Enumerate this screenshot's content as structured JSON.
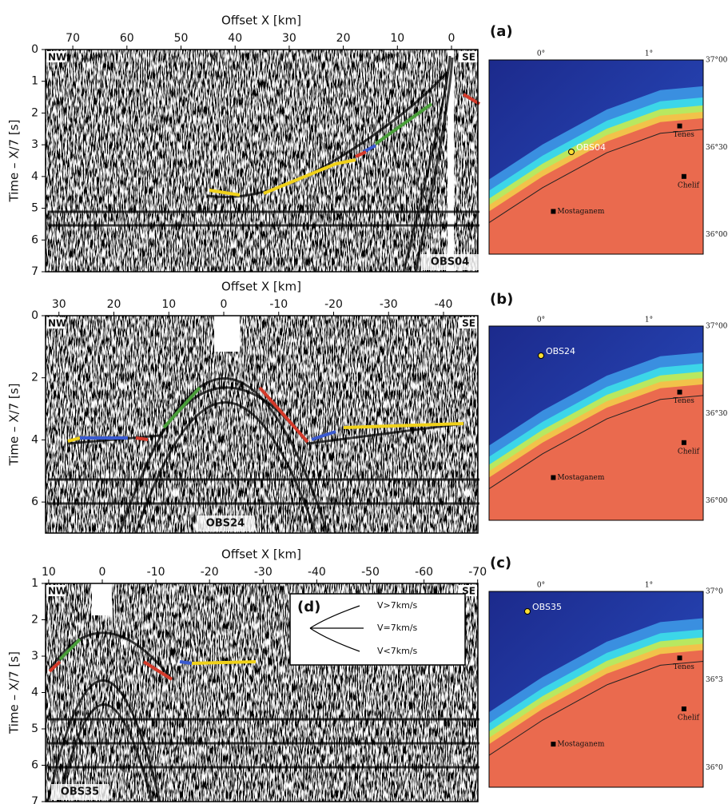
{
  "panels": [
    {
      "label": "(a)",
      "x_axis_label": "Offset X [km]",
      "y_axis_label": "Time – X/7 [s]",
      "x_ticks": [
        70,
        60,
        50,
        40,
        30,
        20,
        10,
        0
      ],
      "y_ticks": [
        0,
        1,
        2,
        3,
        4,
        5,
        6,
        7
      ],
      "left_tag": "NW",
      "right_tag": "SE",
      "station": "OBS04",
      "map": {
        "lon_labels": [
          "0°",
          "1°"
        ],
        "lat_labels": [
          "37°00",
          "36°30",
          "36°00"
        ],
        "places": [
          "Tenes",
          "Chelif",
          "Mostaganem"
        ],
        "station": "OBS04"
      }
    },
    {
      "label": "(b)",
      "x_axis_label": "Offset X [km]",
      "y_axis_label": "Time – X/7 [s]",
      "x_ticks": [
        30,
        20,
        10,
        0,
        -10,
        -20,
        -30,
        -40
      ],
      "y_ticks": [
        0,
        2,
        4,
        6
      ],
      "left_tag": "NW",
      "right_tag": "SE",
      "station": "OBS24",
      "map": {
        "lon_labels": [
          "0°",
          "1°"
        ],
        "lat_labels": [
          "37°00",
          "36°30",
          "36°00"
        ],
        "places": [
          "Tenes",
          "Chelif",
          "Mostaganem"
        ],
        "station": "OBS24"
      }
    },
    {
      "label": "(c)",
      "x_axis_label": "Offset X [km]",
      "y_axis_label": "Time – X/7 [s]",
      "x_ticks": [
        10,
        0,
        -10,
        -20,
        -30,
        -40,
        -50,
        -60,
        -70
      ],
      "y_ticks": [
        1,
        2,
        3,
        4,
        5,
        6,
        7
      ],
      "left_tag": "NW",
      "right_tag": "SE",
      "station": "OBS35",
      "map": {
        "lon_labels": [
          "0°",
          "1°"
        ],
        "lat_labels": [
          "37°0",
          "36°3",
          "36°0"
        ],
        "places": [
          "Tenes",
          "Chelif",
          "Mostaganem"
        ],
        "station": "OBS35"
      }
    }
  ],
  "inset": {
    "label": "(d)",
    "lines": [
      "V>7km/s",
      "V=7km/s",
      "V<7km/s"
    ]
  }
}
